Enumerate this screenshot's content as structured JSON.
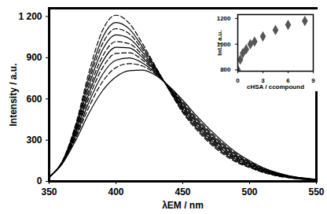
{
  "chart_data": [
    {
      "type": "line",
      "xlabel": "λEM / nm",
      "ylabel": "Intensity / a.u.",
      "color": "#000000",
      "x": [
        350,
        360,
        370,
        380,
        390,
        400,
        410,
        420,
        430,
        440,
        450,
        460,
        470,
        480,
        490,
        500,
        510,
        520,
        530,
        540,
        550
      ],
      "series": [
        {
          "line_style": "solid",
          "values": [
            30,
            130,
            300,
            500,
            660,
            760,
            805,
            810,
            770,
            690,
            590,
            480,
            380,
            290,
            210,
            150,
            100,
            65,
            40,
            25,
            15
          ]
        },
        {
          "line_style": "dashed",
          "values": [
            30,
            133,
            318,
            545,
            726,
            828,
            857,
            839,
            779,
            686,
            577,
            465,
            365,
            277,
            200,
            143,
            95,
            61,
            38,
            24,
            14
          ]
        },
        {
          "line_style": "solid",
          "values": [
            30,
            135,
            332,
            581,
            779,
            882,
            898,
            861,
            786,
            682,
            566,
            453,
            353,
            266,
            191,
            137,
            91,
            58,
            36,
            22,
            14
          ]
        },
        {
          "line_style": "dashed",
          "values": [
            30,
            138,
            346,
            614,
            827,
            931,
            936,
            882,
            793,
            679,
            556,
            442,
            342,
            256,
            183,
            131,
            87,
            56,
            34,
            21,
            13
          ]
        },
        {
          "line_style": "solid",
          "values": [
            30,
            140,
            358,
            644,
            871,
            976,
            971,
            901,
            799,
            676,
            547,
            432,
            332,
            247,
            176,
            126,
            83,
            53,
            33,
            20,
            13
          ]
        },
        {
          "line_style": "dashed",
          "values": [
            30,
            141,
            368,
            671,
            911,
            1017,
            1002,
            918,
            804,
            673,
            539,
            423,
            323,
            239,
            170,
            122,
            80,
            51,
            31,
            19,
            12
          ]
        },
        {
          "line_style": "solid",
          "values": [
            30,
            144,
            382,
            704,
            959,
            1066,
            1040,
            939,
            811,
            670,
            529,
            412,
            312,
            229,
            162,
            116,
            76,
            48,
            30,
            18,
            12
          ]
        },
        {
          "line_style": "dashed",
          "values": [
            30,
            146,
            394,
            734,
            1003,
            1111,
            1074,
            958,
            817,
            667,
            520,
            402,
            302,
            220,
            155,
            111,
            73,
            46,
            28,
            17,
            11
          ]
        },
        {
          "line_style": "solid",
          "values": [
            30,
            148,
            406,
            764,
            1047,
            1156,
            1109,
            977,
            823,
            664,
            511,
            392,
            292,
            211,
            148,
            106,
            69,
            43,
            27,
            16,
            11
          ]
        },
        {
          "line_style": "dashed",
          "values": [
            30,
            150,
            420,
            800,
            1100,
            1210,
            1150,
            1000,
            830,
            660,
            500,
            380,
            280,
            200,
            140,
            100,
            65,
            40,
            25,
            15,
            10
          ]
        }
      ],
      "xlim": [
        350,
        550
      ],
      "xticks": [
        350,
        400,
        450,
        500,
        550
      ],
      "ylim": [
        0,
        1260
      ],
      "yticks": [
        0,
        300,
        600,
        900,
        {
          "value": 1200,
          "label": "1 200"
        }
      ]
    },
    {
      "type": "scatter",
      "xlabel": "cHSA / ccompound",
      "ylabel": "Int. / a.u.",
      "color": "#555555",
      "marker": "diamond",
      "x": [
        0,
        0.3,
        0.6,
        1,
        1.5,
        2,
        3,
        4.5,
        6,
        8
      ],
      "values": [
        800,
        880,
        930,
        960,
        1000,
        1020,
        1060,
        1110,
        1150,
        1180
      ],
      "xlim": [
        0,
        9
      ],
      "xticks": [
        0,
        3,
        6,
        9
      ],
      "ylim": [
        790,
        1230
      ],
      "yticks": [
        800,
        1000,
        1200
      ]
    }
  ]
}
